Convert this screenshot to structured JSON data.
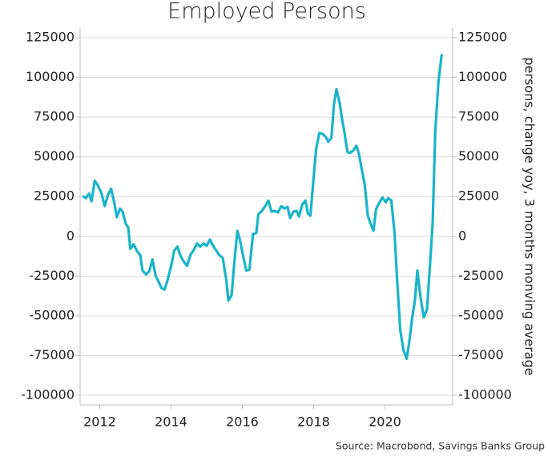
{
  "chart_data": {
    "type": "line",
    "title": "Employed Persons",
    "y2label": "persons, change yoy, 3 months monving average",
    "source": "Source: Macrobond, Savings Banks Group",
    "color": "#1ab4c9",
    "grid": true,
    "xlim": [
      2011.45,
      2021.9
    ],
    "xticks": [
      2012,
      2014,
      2016,
      2018,
      2020
    ],
    "ylim": [
      -100000,
      125000
    ],
    "yticks": [
      -100000,
      -75000,
      -50000,
      -25000,
      0,
      25000,
      50000,
      75000,
      100000,
      125000
    ],
    "y2lim": [
      -100000,
      125000
    ],
    "y2ticks": [
      -100000,
      -75000,
      -50000,
      -25000,
      0,
      25000,
      50000,
      75000,
      100000,
      125000
    ],
    "x": [
      2011.55,
      2011.61,
      2011.7,
      2011.77,
      2011.86,
      2011.95,
      2012.05,
      2012.14,
      2012.23,
      2012.32,
      2012.41,
      2012.48,
      2012.57,
      2012.64,
      2012.73,
      2012.8,
      2012.86,
      2012.95,
      2013.05,
      2013.14,
      2013.2,
      2013.3,
      2013.39,
      2013.48,
      2013.57,
      2013.64,
      2013.73,
      2013.82,
      2013.91,
      2014.0,
      2014.09,
      2014.18,
      2014.27,
      2014.36,
      2014.45,
      2014.55,
      2014.64,
      2014.73,
      2014.82,
      2014.91,
      2015.0,
      2015.09,
      2015.18,
      2015.27,
      2015.36,
      2015.45,
      2015.55,
      2015.61,
      2015.7,
      2015.77,
      2015.86,
      2015.93,
      2016.02,
      2016.11,
      2016.2,
      2016.3,
      2016.39,
      2016.45,
      2016.55,
      2016.64,
      2016.73,
      2016.82,
      2016.91,
      2017.0,
      2017.09,
      2017.18,
      2017.27,
      2017.34,
      2017.43,
      2017.52,
      2017.59,
      2017.68,
      2017.77,
      2017.84,
      2017.91,
      2018.0,
      2018.07,
      2018.16,
      2018.25,
      2018.34,
      2018.41,
      2018.5,
      2018.57,
      2018.64,
      2018.73,
      2018.8,
      2018.86,
      2018.95,
      2019.02,
      2019.11,
      2019.2,
      2019.27,
      2019.36,
      2019.43,
      2019.52,
      2019.59,
      2019.68,
      2019.75,
      2019.84,
      2019.93,
      2020.02,
      2020.09,
      2020.18,
      2020.27,
      2020.34,
      2020.43,
      2020.52,
      2020.61,
      2020.68,
      2020.77,
      2020.84,
      2020.91,
      2021.0,
      2021.09,
      2021.18,
      2021.25,
      2021.34,
      2021.41,
      2021.5,
      2021.59
    ],
    "values": [
      25000,
      24000,
      27000,
      22000,
      35000,
      32000,
      27000,
      19000,
      26000,
      30000,
      21000,
      12000,
      17500,
      15500,
      8000,
      5500,
      -8000,
      -5000,
      -9500,
      -12000,
      -21500,
      -24000,
      -22000,
      -14500,
      -25000,
      -28000,
      -32500,
      -33500,
      -27000,
      -19000,
      -9000,
      -6500,
      -12500,
      -16000,
      -18500,
      -11500,
      -8500,
      -4500,
      -6500,
      -4500,
      -6000,
      -2000,
      -6000,
      -9000,
      -12000,
      -13500,
      -27500,
      -40500,
      -37000,
      -18000,
      3500,
      -2000,
      -12000,
      -21500,
      -21000,
      1500,
      2000,
      14000,
      16000,
      19000,
      22500,
      15500,
      16000,
      15000,
      19000,
      17500,
      18500,
      11500,
      15500,
      16000,
      12500,
      20000,
      22500,
      14500,
      13000,
      37000,
      55000,
      65000,
      64500,
      62500,
      59500,
      62000,
      83000,
      92500,
      84000,
      73500,
      66000,
      53000,
      52500,
      54000,
      57000,
      52000,
      41000,
      33000,
      13000,
      8500,
      3500,
      17000,
      21000,
      24500,
      21500,
      24000,
      22500,
      2000,
      -26500,
      -59000,
      -71500,
      -77000,
      -67000,
      -50500,
      -40500,
      -21500,
      -38500,
      -51000,
      -46000,
      -23000,
      9000,
      65000,
      97000,
      114000
    ]
  }
}
